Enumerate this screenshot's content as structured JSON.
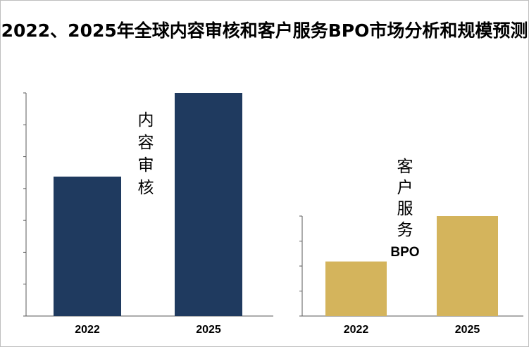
{
  "title": "2022、2025年全球内容审核和客户服务BPO市场分析和规模预测",
  "colors": {
    "navy": "#1f3a5f",
    "gold": "#d4b45c",
    "axis": "#595959"
  },
  "chart_data": [
    {
      "type": "bar",
      "series": [
        {
          "name": "内容审核",
          "values": [
            2.5,
            4.0
          ]
        }
      ],
      "categories": [
        "2022",
        "2025"
      ],
      "label_chars": [
        "内",
        "容",
        "审",
        "核"
      ],
      "ylim": [
        0,
        4.0
      ],
      "y_ticks": 7,
      "color": "#1f3a5f"
    },
    {
      "type": "bar",
      "series": [
        {
          "name": "客户服务BPO",
          "values": [
            1.2,
            2.2
          ]
        }
      ],
      "categories": [
        "2022",
        "2025"
      ],
      "label_chars": [
        "客",
        "户",
        "服",
        "务",
        "BPO"
      ],
      "ylim": [
        0,
        2.2
      ],
      "y_ticks": 4,
      "color": "#d4b45c"
    }
  ]
}
